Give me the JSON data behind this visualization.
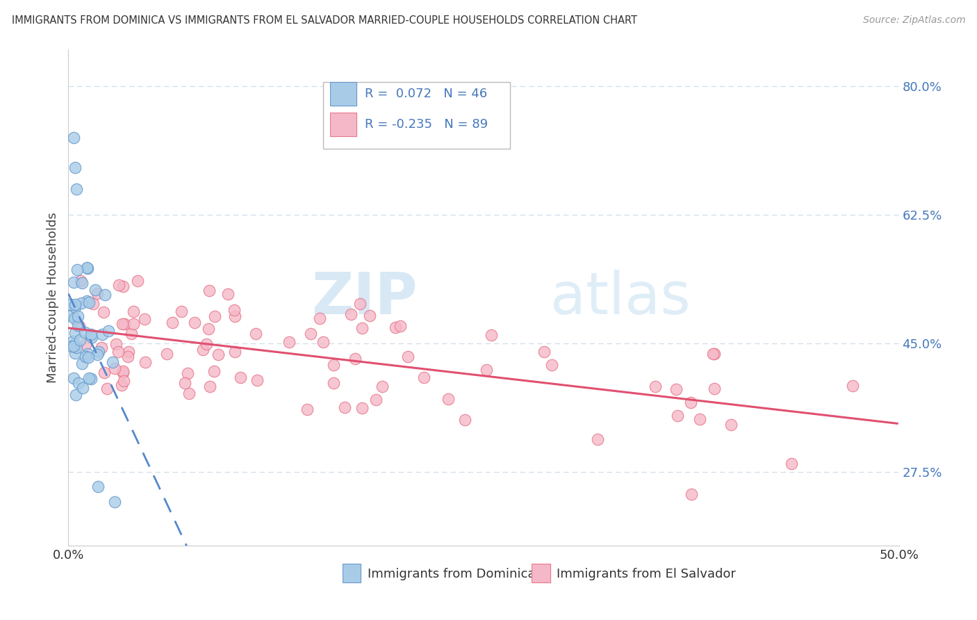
{
  "title": "IMMIGRANTS FROM DOMINICA VS IMMIGRANTS FROM EL SALVADOR MARRIED-COUPLE HOUSEHOLDS CORRELATION CHART",
  "source": "Source: ZipAtlas.com",
  "xlabel_dominica": "Immigrants from Dominica",
  "xlabel_elsalvador": "Immigrants from El Salvador",
  "ylabel": "Married-couple Households",
  "xmin": 0.0,
  "xmax": 0.5,
  "ymin": 0.175,
  "ymax": 0.85,
  "yticks": [
    0.275,
    0.45,
    0.625,
    0.8
  ],
  "ytick_labels": [
    "27.5%",
    "45.0%",
    "62.5%",
    "80.0%"
  ],
  "xtick_labels": [
    "0.0%",
    "50.0%"
  ],
  "xtick_locs": [
    0.0,
    0.5
  ],
  "legend_r_dominica": "R =  0.072",
  "legend_n_dominica": "N = 46",
  "legend_r_elsalvador": "R = -0.235",
  "legend_n_elsalvador": "N = 89",
  "color_dominica": "#a8cce8",
  "color_elsalvador": "#f5b8c8",
  "edge_color_dominica": "#6699cc",
  "edge_color_elsalvador": "#e8788a",
  "line_color_dominica": "#5588cc",
  "line_color_elsalvador": "#e05070",
  "watermark_zip": "ZIP",
  "watermark_atlas": "atlas",
  "bg_color": "#ffffff",
  "grid_color": "#d0dde8",
  "spine_color": "#cccccc",
  "tick_label_color": "#4477bb",
  "ylabel_color": "#444444",
  "title_color": "#333333"
}
